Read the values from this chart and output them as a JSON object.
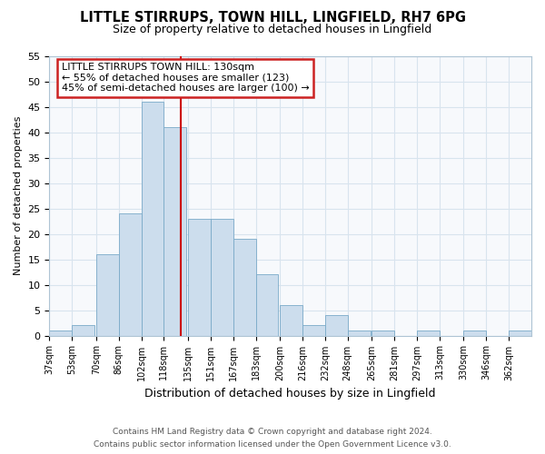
{
  "title1": "LITTLE STIRRUPS, TOWN HILL, LINGFIELD, RH7 6PG",
  "title2": "Size of property relative to detached houses in Lingfield",
  "xlabel": "Distribution of detached houses by size in Lingfield",
  "ylabel": "Number of detached properties",
  "bar_color": "#ccdded",
  "bar_edge_color": "#7aaac8",
  "bin_labels": [
    "37sqm",
    "53sqm",
    "70sqm",
    "86sqm",
    "102sqm",
    "118sqm",
    "135sqm",
    "151sqm",
    "167sqm",
    "183sqm",
    "200sqm",
    "216sqm",
    "232sqm",
    "248sqm",
    "265sqm",
    "281sqm",
    "297sqm",
    "313sqm",
    "330sqm",
    "346sqm",
    "362sqm"
  ],
  "bin_edges": [
    37,
    53,
    70,
    86,
    102,
    118,
    135,
    151,
    167,
    183,
    200,
    216,
    232,
    248,
    265,
    281,
    297,
    313,
    330,
    346,
    362
  ],
  "bar_heights": [
    1,
    2,
    16,
    24,
    46,
    41,
    23,
    23,
    19,
    12,
    6,
    2,
    4,
    1,
    1,
    0,
    1,
    0,
    1,
    0,
    1
  ],
  "ylim": [
    0,
    55
  ],
  "yticks": [
    0,
    5,
    10,
    15,
    20,
    25,
    30,
    35,
    40,
    45,
    50,
    55
  ],
  "vline_x": 130,
  "vline_color": "#cc0000",
  "annotation_title": "LITTLE STIRRUPS TOWN HILL: 130sqm",
  "annotation_line1": "← 55% of detached houses are smaller (123)",
  "annotation_line2": "45% of semi-detached houses are larger (100) →",
  "footer1": "Contains HM Land Registry data © Crown copyright and database right 2024.",
  "footer2": "Contains public sector information licensed under the Open Government Licence v3.0.",
  "background_color": "#ffffff",
  "plot_bg_color": "#f7f9fc",
  "grid_color": "#d8e4ee",
  "box_face_color": "#ffffff",
  "box_edge_color": "#cc2222"
}
